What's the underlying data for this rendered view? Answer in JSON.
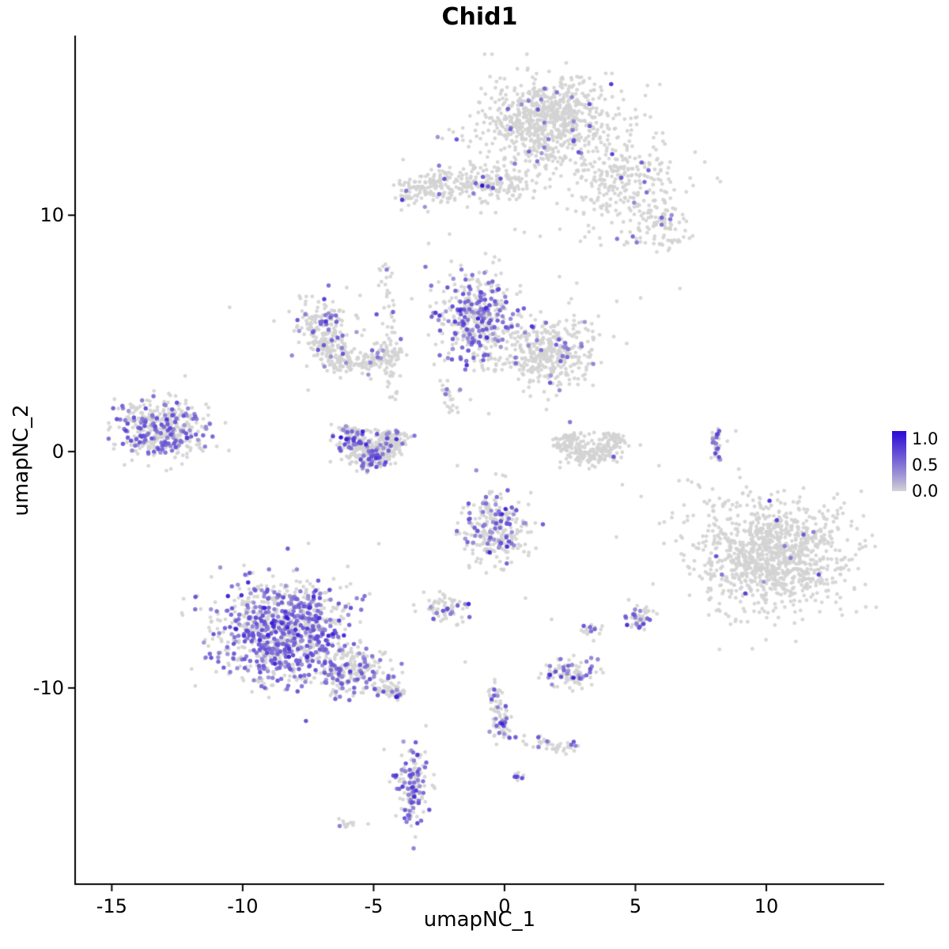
{
  "chart_data": {
    "type": "scatter",
    "title": "Chid1",
    "xlabel": "umapNC_1",
    "ylabel": "umapNC_2",
    "xlim": [
      -16.4,
      14.5
    ],
    "ylim": [
      -18.3,
      17.6
    ],
    "x_ticks": [
      "-15",
      "-10",
      "-5",
      "0",
      "5",
      "10"
    ],
    "x_tick_values": [
      -15,
      -10,
      -5,
      0,
      5,
      10
    ],
    "y_ticks": [
      "10",
      "0",
      "-10"
    ],
    "y_tick_values": [
      10,
      0,
      -10
    ],
    "grid": "off",
    "legend": {
      "position": "right",
      "vmax": 1.15,
      "ticks": [
        {
          "label": "1.0",
          "value": 1.0
        },
        {
          "label": "0.5",
          "value": 0.5
        },
        {
          "label": "0.0",
          "value": 0.0
        }
      ]
    },
    "colors": {
      "point_zero": "#D3D3D3",
      "point_max": "#2B0AD7",
      "axis": "#000000",
      "background": "#FFFFFF"
    },
    "clusters": [
      {
        "name": "top-main",
        "type": "blob",
        "cx": 1.7,
        "cy": 14.0,
        "sx": 1.15,
        "sy": 0.85,
        "n": 680,
        "expr": 0.018
      },
      {
        "name": "top-main-fringe",
        "type": "blob",
        "cx": 2.2,
        "cy": 13.3,
        "sx": 1.9,
        "sy": 1.5,
        "n": 120,
        "expr": 0.02
      },
      {
        "name": "top-right-arm",
        "type": "blob",
        "cx": 4.6,
        "cy": 11.6,
        "sx": 0.85,
        "sy": 0.75,
        "n": 170,
        "expr": 0.03
      },
      {
        "name": "top-right-nub",
        "type": "blob",
        "cx": 5.8,
        "cy": 9.7,
        "sx": 0.55,
        "sy": 0.5,
        "n": 90,
        "expr": 0.05
      },
      {
        "name": "top-band",
        "type": "line",
        "x1": -3.2,
        "y1": 11.2,
        "x2": 0.8,
        "y2": 11.5,
        "jitter": 0.38,
        "n": 270,
        "expr": 0.03
      },
      {
        "name": "band-left-tip",
        "type": "blob",
        "cx": -3.6,
        "cy": 11.0,
        "sx": 0.3,
        "sy": 0.3,
        "n": 40,
        "expr": 0.05
      },
      {
        "name": "scatter-topright",
        "type": "blob",
        "cx": 4.3,
        "cy": 11.0,
        "sx": 1.9,
        "sy": 1.8,
        "n": 90,
        "expr": 0.02
      },
      {
        "name": "midtop-expressing",
        "type": "blob",
        "cx": -1.1,
        "cy": 5.6,
        "sx": 0.72,
        "sy": 0.95,
        "n": 420,
        "expr": 0.34
      },
      {
        "name": "midtop-right",
        "type": "blob",
        "cx": 1.6,
        "cy": 4.2,
        "sx": 0.95,
        "sy": 0.7,
        "n": 380,
        "expr": 0.05
      },
      {
        "name": "left-arc-upper",
        "type": "blob",
        "cx": -6.9,
        "cy": 5.3,
        "sx": 0.6,
        "sy": 0.55,
        "n": 160,
        "expr": 0.16
      },
      {
        "name": "left-arc-lower",
        "type": "arc",
        "cx": -5.6,
        "cy": 5.3,
        "r": 1.6,
        "a1": 200,
        "a2": 330,
        "thick": 0.3,
        "n": 230,
        "expr": 0.07
      },
      {
        "name": "mid-wisp",
        "type": "line",
        "x1": -4.5,
        "y1": 7.6,
        "x2": -4.2,
        "y2": 2.0,
        "jitter": 0.16,
        "n": 55,
        "expr": 0.05
      },
      {
        "name": "wisp-top-dot",
        "type": "blob",
        "cx": -4.5,
        "cy": 7.7,
        "sx": 0.12,
        "sy": 0.12,
        "n": 6,
        "expr": 0.3
      },
      {
        "name": "far-left",
        "type": "blob",
        "cx": -13.1,
        "cy": 0.9,
        "sx": 0.85,
        "sy": 0.6,
        "n": 430,
        "expr": 0.3
      },
      {
        "name": "left-crescent",
        "type": "arc",
        "cx": -5.0,
        "cy": 0.9,
        "r": 0.95,
        "a1": 170,
        "a2": 360,
        "thick": 0.3,
        "n": 300,
        "expr": 0.15
      },
      {
        "name": "left-crescent-core",
        "type": "blob",
        "cx": -5.3,
        "cy": -0.1,
        "sx": 0.55,
        "sy": 0.35,
        "n": 120,
        "expr": 0.18
      },
      {
        "name": "mid-trail",
        "type": "line",
        "x1": -2.4,
        "y1": 3.1,
        "x2": -2.0,
        "y2": 1.6,
        "jitter": 0.12,
        "n": 22,
        "expr": 0.05
      },
      {
        "name": "center-right-u",
        "type": "arc",
        "cx": 3.3,
        "cy": 0.9,
        "r": 1.05,
        "a1": 190,
        "a2": 350,
        "thick": 0.3,
        "n": 260,
        "expr": 0.008
      },
      {
        "name": "right-strip",
        "type": "line",
        "x1": 8.05,
        "y1": 1.0,
        "x2": 8.15,
        "y2": -0.3,
        "jitter": 0.1,
        "n": 30,
        "expr": 0.25
      },
      {
        "name": "right-large",
        "type": "blob",
        "cx": 10.3,
        "cy": -4.4,
        "sx": 1.45,
        "sy": 1.1,
        "n": 950,
        "expr": 0.005
      },
      {
        "name": "right-large-fringe",
        "type": "blob",
        "cx": 9.3,
        "cy": -4.0,
        "sx": 2.0,
        "sy": 1.6,
        "n": 120,
        "expr": 0.01
      },
      {
        "name": "center-low",
        "type": "blob",
        "cx": -0.4,
        "cy": -3.3,
        "sx": 0.65,
        "sy": 0.75,
        "n": 270,
        "expr": 0.22
      },
      {
        "name": "small-pair",
        "type": "blob",
        "cx": -2.3,
        "cy": -6.6,
        "sx": 0.42,
        "sy": 0.28,
        "n": 70,
        "expr": 0.15
      },
      {
        "name": "bottomleft-main",
        "type": "blob",
        "cx": -8.5,
        "cy": -7.7,
        "sx": 1.25,
        "sy": 1.1,
        "n": 950,
        "expr": 0.45
      },
      {
        "name": "bottomleft-ext",
        "type": "blob",
        "cx": -5.9,
        "cy": -9.2,
        "sx": 0.75,
        "sy": 0.5,
        "n": 230,
        "expr": 0.3
      },
      {
        "name": "bottomleft-tail",
        "type": "line",
        "x1": -4.8,
        "y1": -9.9,
        "x2": -3.9,
        "y2": -10.3,
        "jitter": 0.15,
        "n": 60,
        "expr": 0.08
      },
      {
        "name": "bottom-smallA",
        "type": "blob",
        "cx": 2.4,
        "cy": -9.4,
        "sx": 0.55,
        "sy": 0.3,
        "n": 95,
        "expr": 0.28
      },
      {
        "name": "bottom-smallB",
        "type": "blob",
        "cx": 5.1,
        "cy": -7.0,
        "sx": 0.3,
        "sy": 0.26,
        "n": 48,
        "expr": 0.22
      },
      {
        "name": "bottom-smallC",
        "type": "blob",
        "cx": 3.3,
        "cy": -7.5,
        "sx": 0.22,
        "sy": 0.18,
        "n": 16,
        "expr": 0.08
      },
      {
        "name": "bottom-trail",
        "type": "line",
        "x1": -0.4,
        "y1": -9.9,
        "x2": 0.0,
        "y2": -12.1,
        "jitter": 0.16,
        "n": 75,
        "expr": 0.18
      },
      {
        "name": "bottom-diag",
        "type": "line",
        "x1": 0.6,
        "y1": -12.2,
        "x2": 2.7,
        "y2": -12.6,
        "jitter": 0.14,
        "n": 42,
        "expr": 0.07
      },
      {
        "name": "bottom-dense",
        "type": "blob",
        "cx": -3.5,
        "cy": -14.2,
        "sx": 0.3,
        "sy": 0.8,
        "n": 140,
        "expr": 0.35
      },
      {
        "name": "bottom-tinyA",
        "type": "blob",
        "cx": 0.55,
        "cy": -13.8,
        "sx": 0.15,
        "sy": 0.15,
        "n": 9,
        "expr": 0.3
      },
      {
        "name": "bottom-tinyB",
        "type": "blob",
        "cx": -6.0,
        "cy": -15.8,
        "sx": 0.3,
        "sy": 0.15,
        "n": 13,
        "expr": 0.04
      }
    ],
    "singles": [
      [
        -10.5,
        6.1
      ],
      [
        6.7,
        6.9
      ],
      [
        -2.9,
        8.8
      ],
      [
        -2.1,
        9.2
      ],
      [
        3.1,
        5.2
      ],
      [
        -0.6,
        1.6
      ],
      [
        -1.3,
        2.2
      ],
      [
        -2.3,
        2.6
      ],
      [
        4.5,
        -1.4
      ],
      [
        3.4,
        -8.0
      ],
      [
        1.8,
        -7.1
      ],
      [
        -4.6,
        -12.6
      ],
      [
        -12.2,
        3.2
      ],
      [
        2.1,
        7.4
      ],
      [
        6.3,
        8.6
      ],
      [
        -0.2,
        8.1
      ],
      [
        0.4,
        9.4
      ],
      [
        5.2,
        6.5
      ],
      [
        -7.5,
        2.6
      ],
      [
        -1.8,
        -0.6
      ],
      [
        0.8,
        -6.2
      ],
      [
        -0.9,
        10.1
      ],
      [
        3.7,
        10.3
      ],
      [
        2.9,
        8.9
      ],
      [
        5.9,
        -0.6
      ],
      [
        7.0,
        -1.2
      ],
      [
        -3.0,
        -11.6
      ],
      [
        -1.5,
        -8.9
      ]
    ],
    "high_points": [
      {
        "x": -0.85,
        "y": 11.25,
        "v": 1.15
      },
      {
        "x": -6.25,
        "y": 0.6,
        "v": 1.15
      },
      {
        "x": -6.1,
        "y": 0.3,
        "v": 0.8
      },
      {
        "x": -6.3,
        "y": 0.15,
        "v": 0.7
      },
      {
        "x": 4.9,
        "y": 9.1,
        "v": 0.6
      },
      {
        "x": 5.05,
        "y": 8.85,
        "v": 0.5
      },
      {
        "x": 6.0,
        "y": 9.6,
        "v": 0.55
      },
      {
        "x": 5.5,
        "y": 11.9,
        "v": 0.6
      },
      {
        "x": 4.3,
        "y": 9.0,
        "v": 0.5
      },
      {
        "x": 10.4,
        "y": -2.9,
        "v": 0.85
      },
      {
        "x": 12.0,
        "y": -5.2,
        "v": 0.8
      },
      {
        "x": 9.2,
        "y": -6.0,
        "v": 0.85
      },
      {
        "x": 10.7,
        "y": -4.0,
        "v": 0.5
      },
      {
        "x": 11.8,
        "y": -3.4,
        "v": 0.45
      },
      {
        "x": 8.3,
        "y": -5.2,
        "v": 0.5
      },
      {
        "x": -3.45,
        "y": -14.6,
        "v": 0.95
      },
      {
        "x": -3.5,
        "y": -14.2,
        "v": 0.85
      },
      {
        "x": 2.55,
        "y": -12.4,
        "v": 0.6
      },
      {
        "x": 1.3,
        "y": -12.5,
        "v": 0.5
      },
      {
        "x": 2.5,
        "y": 1.25,
        "v": 0.5
      },
      {
        "x": 8.1,
        "y": 0.6,
        "v": 0.6
      },
      {
        "x": 8.1,
        "y": 0.1,
        "v": 0.5
      },
      {
        "x": -2.5,
        "y": 12.1,
        "v": 0.5
      },
      {
        "x": 2.0,
        "y": 15.2,
        "v": 0.55
      },
      {
        "x": 1.4,
        "y": 14.9,
        "v": 0.5
      },
      {
        "x": 2.6,
        "y": 13.6,
        "v": 0.5
      },
      {
        "x": 0.5,
        "y": -13.75,
        "v": 0.55
      },
      {
        "x": -4.5,
        "y": 7.7,
        "v": 0.5
      },
      {
        "x": -0.3,
        "y": -11.6,
        "v": 0.6
      },
      {
        "x": -0.2,
        "y": -11.9,
        "v": 0.55
      }
    ]
  }
}
